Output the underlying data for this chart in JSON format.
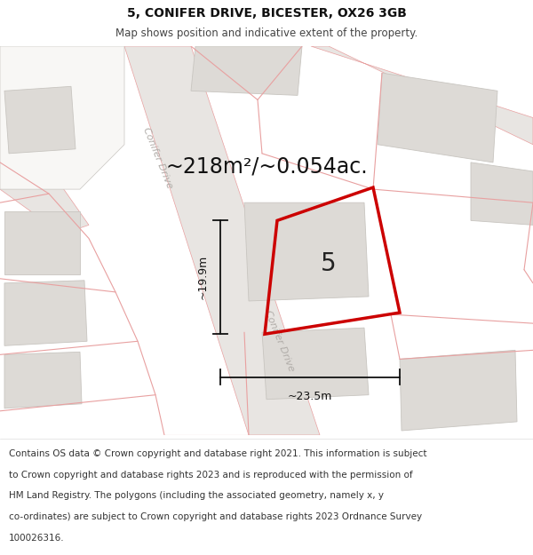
{
  "title": "5, CONIFER DRIVE, BICESTER, OX26 3GB",
  "subtitle": "Map shows position and indicative extent of the property.",
  "area_label": "~218m²/~0.054ac.",
  "property_number": "5",
  "dim_width": "~23.5m",
  "dim_height": "~19.9m",
  "road_label": "Conifer Drive",
  "footer_lines": [
    "Contains OS data © Crown copyright and database right 2021. This information is subject",
    "to Crown copyright and database rights 2023 and is reproduced with the permission of",
    "HM Land Registry. The polygons (including the associated geometry, namely x, y",
    "co-ordinates) are subject to Crown copyright and database rights 2023 Ordnance Survey",
    "100026316."
  ],
  "map_bg_color": "#f2f0ee",
  "road_fill_color": "#e8e5e2",
  "road_line_color": "#e8a0a0",
  "building_fill_color": "#dddad6",
  "building_edge_color": "#c8c5c0",
  "property_color": "#cc0000",
  "dim_color": "#111111",
  "title_fontsize": 10,
  "subtitle_fontsize": 8.5,
  "footer_fontsize": 7.5,
  "area_fontsize": 17,
  "number_fontsize": 20,
  "dim_fontsize": 9
}
